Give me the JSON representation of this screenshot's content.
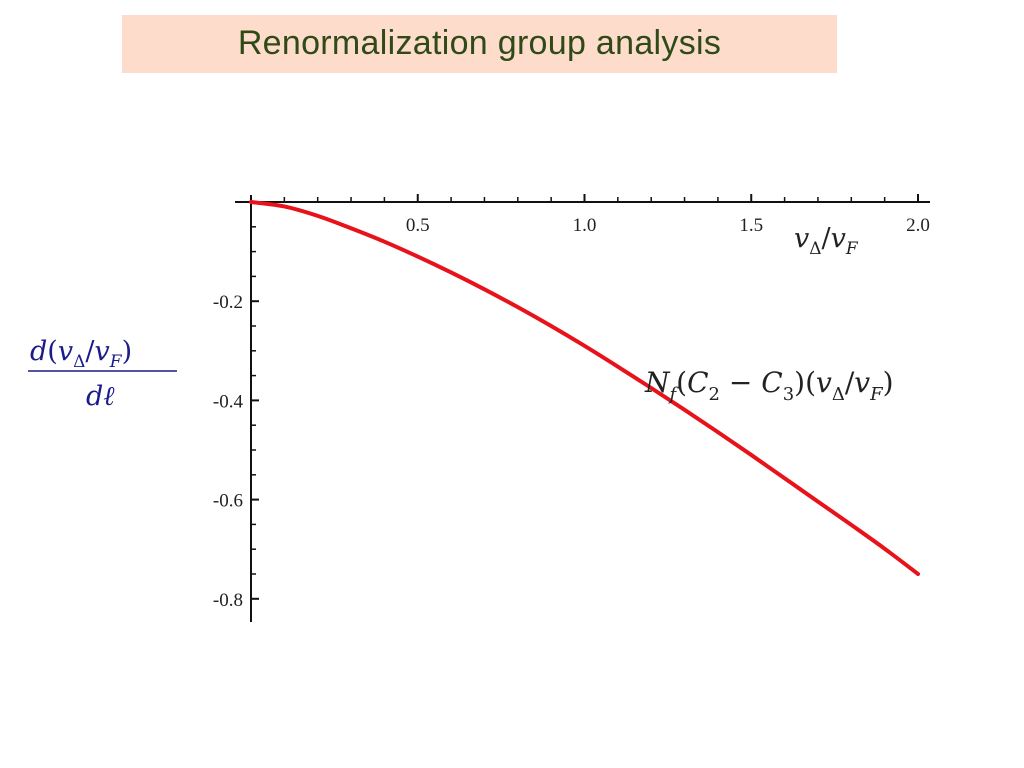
{
  "title": "Renormalization group analysis",
  "colors": {
    "title_bg": "#fddccc",
    "title_text": "#2f4a17",
    "curve": "#e8121a",
    "axis": "#111111",
    "ylabel": "#1b1b8a"
  },
  "chart_data": {
    "type": "line",
    "xlim": [
      0,
      2.0
    ],
    "ylim": [
      -0.85,
      0
    ],
    "x_ticks": [
      "0.5",
      "1.0",
      "1.5",
      "2.0"
    ],
    "y_ticks": [
      "-0.2",
      "-0.4",
      "-0.6",
      "-0.8"
    ],
    "grid": false,
    "xlabel": "vΔ/vF",
    "ylabel": "d(vΔ/vF)/dℓ",
    "annotation": "Nf(C2 − C3)(vΔ/vF)",
    "series": [
      {
        "x": [
          0.0,
          0.1,
          0.2,
          0.3,
          0.4,
          0.5,
          0.6,
          0.7,
          0.8,
          0.9,
          1.0,
          1.1,
          1.2,
          1.3,
          1.4,
          1.5,
          1.6,
          1.7,
          1.8,
          1.9,
          2.0
        ],
        "values": [
          0.0,
          -0.009,
          -0.028,
          -0.053,
          -0.08,
          -0.11,
          -0.142,
          -0.176,
          -0.212,
          -0.25,
          -0.29,
          -0.332,
          -0.375,
          -0.419,
          -0.464,
          -0.51,
          -0.557,
          -0.604,
          -0.651,
          -0.699,
          -0.75
        ]
      }
    ]
  }
}
